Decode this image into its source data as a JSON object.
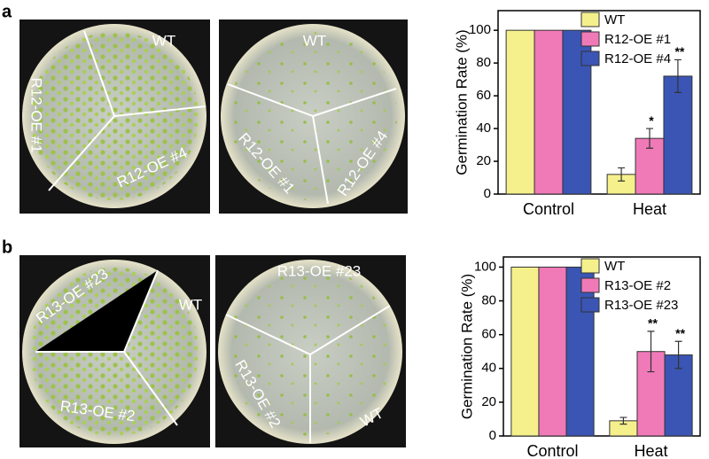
{
  "panels": [
    {
      "label": "a",
      "plates": [
        [
          "WT",
          "R12-OE #1",
          "R12-OE #4"
        ],
        [
          "WT",
          "R12-OE #1",
          "R12-OE #4"
        ]
      ]
    },
    {
      "label": "b",
      "plates": [
        [
          "R13-OE #23",
          "WT",
          "R13-OE #2"
        ],
        [
          "R13-OE #23",
          "R13-OE #2",
          "WT"
        ]
      ]
    }
  ],
  "chart_data": [
    {
      "type": "bar",
      "y_label": "Germination Rate (%)",
      "categories": [
        "Control",
        "Heat"
      ],
      "ylim": [
        0,
        112
      ],
      "yticks": [
        0,
        20,
        40,
        60,
        80,
        100
      ],
      "legend": "top-right",
      "series": [
        {
          "name": "WT",
          "color": "#f5f08c",
          "values": [
            100,
            12
          ],
          "errors": [
            0,
            4
          ],
          "significance": [
            null,
            null
          ]
        },
        {
          "name": "R12-OE #1",
          "color": "#f07ab8",
          "values": [
            100,
            34
          ],
          "errors": [
            0,
            6
          ],
          "significance": [
            null,
            "*"
          ]
        },
        {
          "name": "R12-OE #4",
          "color": "#3a55b4",
          "values": [
            100,
            72
          ],
          "errors": [
            0,
            10
          ],
          "significance": [
            null,
            "**"
          ]
        }
      ]
    },
    {
      "type": "bar",
      "y_label": "Germination Rate (%)",
      "categories": [
        "Control",
        "Heat"
      ],
      "ylim": [
        0,
        106
      ],
      "yticks": [
        0,
        20,
        40,
        60,
        80,
        100
      ],
      "legend": "top-right",
      "series": [
        {
          "name": "WT",
          "color": "#f5f08c",
          "values": [
            100,
            9
          ],
          "errors": [
            0,
            2
          ],
          "significance": [
            null,
            null
          ]
        },
        {
          "name": "R13-OE #2",
          "color": "#f07ab8",
          "values": [
            100,
            50
          ],
          "errors": [
            0,
            12
          ],
          "significance": [
            null,
            "**"
          ]
        },
        {
          "name": "R13-OE #23",
          "color": "#3a55b4",
          "values": [
            100,
            48
          ],
          "errors": [
            0,
            8
          ],
          "significance": [
            null,
            "**"
          ]
        }
      ]
    }
  ]
}
